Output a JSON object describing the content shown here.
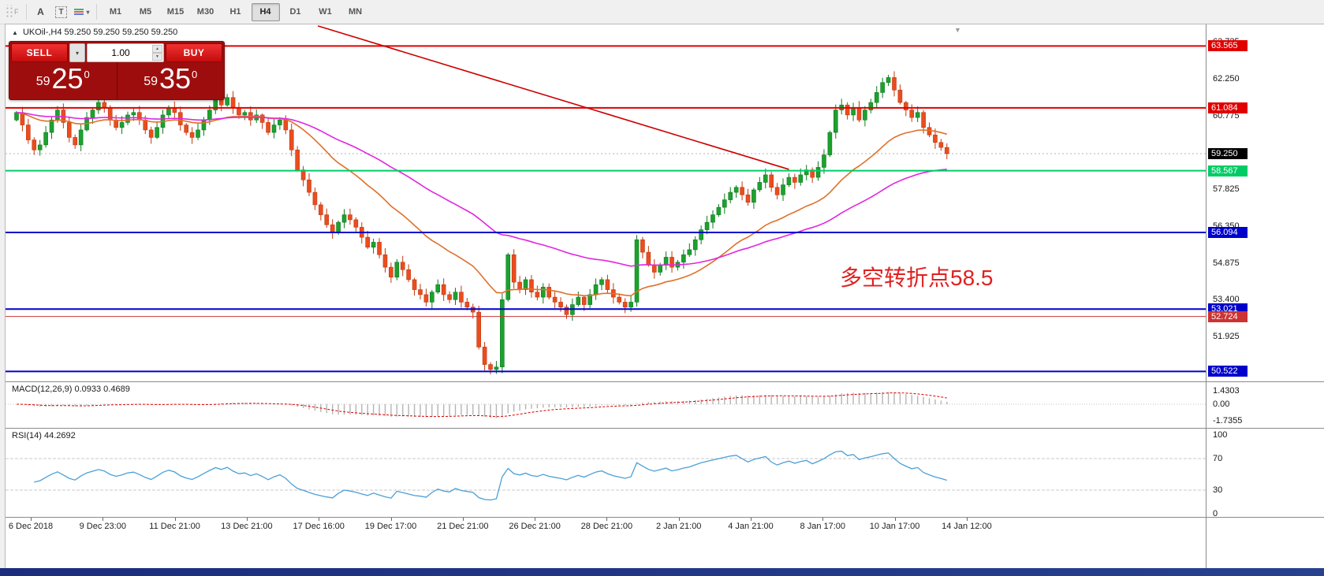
{
  "icons": {
    "marker": "▲",
    "dropdown": "▾",
    "spinner_up": "▲",
    "spinner_down": "▼",
    "shift_marker": "▼"
  },
  "toolbar": {
    "grip_label": "F",
    "tools": [
      {
        "name": "text-tool-button",
        "label": "A",
        "kind": "plain"
      },
      {
        "name": "textlabel-tool-button",
        "label": "T",
        "kind": "boxed"
      },
      {
        "name": "line-style-button",
        "label": "",
        "kind": "linestyle"
      }
    ],
    "timeframes": [
      "M1",
      "M5",
      "M15",
      "M30",
      "H1",
      "H4",
      "D1",
      "W1",
      "MN"
    ],
    "active_timeframe": "H4"
  },
  "chart": {
    "symbol_ohlc": "UKOil-,H4   59.250 59.250 59.250 59.250",
    "current_price_label": "59.250",
    "annotation": {
      "text": "多空转折点58.5",
      "color": "#e02020"
    },
    "trade_panel": {
      "sell_label": "SELL",
      "buy_label": "BUY",
      "volume": "1.00",
      "sell_price_prefix": "59",
      "sell_price_main": "25",
      "sell_price_sup": "0",
      "buy_price_prefix": "59",
      "buy_price_main": "35",
      "buy_price_sup": "0"
    }
  },
  "chart_data": [
    {
      "type": "candlestick",
      "symbol": "UKOil-",
      "timeframe": "H4",
      "title": "UKOil-,H4",
      "x_labels": [
        "6 Dec 2018",
        "9 Dec 23:00",
        "11 Dec 21:00",
        "13 Dec 21:00",
        "17 Dec 16:00",
        "19 Dec 17:00",
        "21 Dec 21:00",
        "26 Dec 21:00",
        "28 Dec 21:00",
        "2 Jan 21:00",
        "4 Jan 21:00",
        "8 Jan 17:00",
        "10 Jan 17:00",
        "14 Jan 12:00"
      ],
      "ylim": [
        50.1,
        64.45
      ],
      "grid_prices": [
        63.725,
        62.25,
        60.775,
        59.25,
        57.825,
        56.35,
        54.875,
        53.4,
        51.925
      ],
      "current_price": 59.25,
      "up_color": "#1ca12e",
      "down_color": "#ea4d1e",
      "h_lines": [
        {
          "price": 63.565,
          "color": "#e00000",
          "width": 2
        },
        {
          "price": 61.084,
          "color": "#e00000",
          "width": 2
        },
        {
          "price": 58.567,
          "color": "#00cc66",
          "width": 2
        },
        {
          "price": 56.094,
          "color": "#0000cc",
          "width": 2
        },
        {
          "price": 53.021,
          "color": "#0000cc",
          "width": 2
        },
        {
          "price": 52.724,
          "color": "#cc3333",
          "width": 1
        },
        {
          "price": 50.522,
          "color": "#0000cc",
          "width": 2
        }
      ],
      "trendline": {
        "from_index": 51.5,
        "from_price": 64.37,
        "to_index": 132,
        "to_price": 58.62,
        "color": "#cc0000"
      },
      "moving_averages": [
        {
          "period": 25,
          "color": "#e0702a"
        },
        {
          "period": 60,
          "color": "#e026e0"
        }
      ],
      "first_open": 60.6,
      "closes": [
        60.9,
        60.4,
        59.8,
        59.4,
        59.6,
        60.1,
        60.6,
        61.0,
        60.5,
        59.9,
        59.6,
        60.2,
        60.7,
        61.0,
        61.3,
        61.1,
        60.6,
        60.3,
        60.5,
        60.8,
        60.9,
        60.6,
        60.2,
        59.9,
        60.3,
        60.8,
        61.1,
        60.9,
        60.4,
        60.1,
        59.9,
        60.2,
        60.6,
        61.0,
        61.4,
        61.2,
        61.5,
        61.1,
        60.8,
        60.9,
        60.6,
        60.8,
        60.5,
        60.1,
        60.4,
        60.6,
        60.2,
        59.4,
        58.6,
        58.2,
        57.7,
        57.2,
        56.8,
        56.4,
        56.1,
        56.5,
        56.8,
        56.6,
        56.3,
        55.9,
        55.5,
        55.7,
        55.2,
        54.7,
        54.3,
        54.9,
        54.6,
        54.2,
        53.8,
        53.6,
        53.3,
        53.7,
        54.0,
        53.6,
        53.4,
        53.7,
        53.3,
        53.1,
        52.9,
        51.5,
        50.8,
        50.6,
        50.7,
        53.4,
        55.2,
        54.1,
        53.8,
        54.2,
        53.7,
        53.5,
        53.9,
        53.5,
        53.3,
        53.1,
        52.8,
        53.2,
        53.5,
        53.2,
        53.6,
        54.0,
        54.2,
        53.8,
        53.5,
        53.3,
        53.1,
        53.3,
        55.8,
        55.3,
        54.8,
        54.5,
        54.8,
        55.1,
        54.7,
        54.9,
        55.2,
        55.4,
        55.8,
        56.2,
        56.5,
        56.8,
        57.1,
        57.4,
        57.7,
        57.9,
        57.6,
        57.3,
        57.8,
        58.1,
        58.4,
        57.9,
        57.6,
        58.0,
        58.3,
        58.1,
        58.4,
        58.6,
        58.3,
        58.7,
        59.2,
        60.1,
        61.0,
        61.2,
        60.8,
        61.1,
        60.6,
        61.0,
        61.3,
        61.7,
        62.1,
        62.3,
        61.8,
        61.3,
        61.0,
        60.7,
        60.9,
        60.3,
        60.0,
        59.7,
        59.5,
        59.25
      ]
    },
    {
      "type": "macd",
      "title": "MACD(12,26,9)",
      "values": "0.0933 0.4689",
      "params": [
        12,
        26,
        9
      ],
      "y_ticks": [
        {
          "v": 1.4303,
          "label": "1.4303"
        },
        {
          "v": 0,
          "label": "0.00"
        },
        {
          "v": -1.7355,
          "label": "-1.7355"
        }
      ],
      "main_color": "#b4b4b4",
      "signal_color": "#dd0000"
    },
    {
      "type": "rsi",
      "title": "RSI(14)",
      "value": "44.2692",
      "period": 14,
      "y_ticks": [
        {
          "v": 100,
          "label": "100"
        },
        {
          "v": 70,
          "label": "70"
        },
        {
          "v": 30,
          "label": "30"
        },
        {
          "v": 0,
          "label": "0"
        }
      ],
      "levels": [
        70,
        30
      ],
      "color": "#4aa0d8"
    }
  ]
}
